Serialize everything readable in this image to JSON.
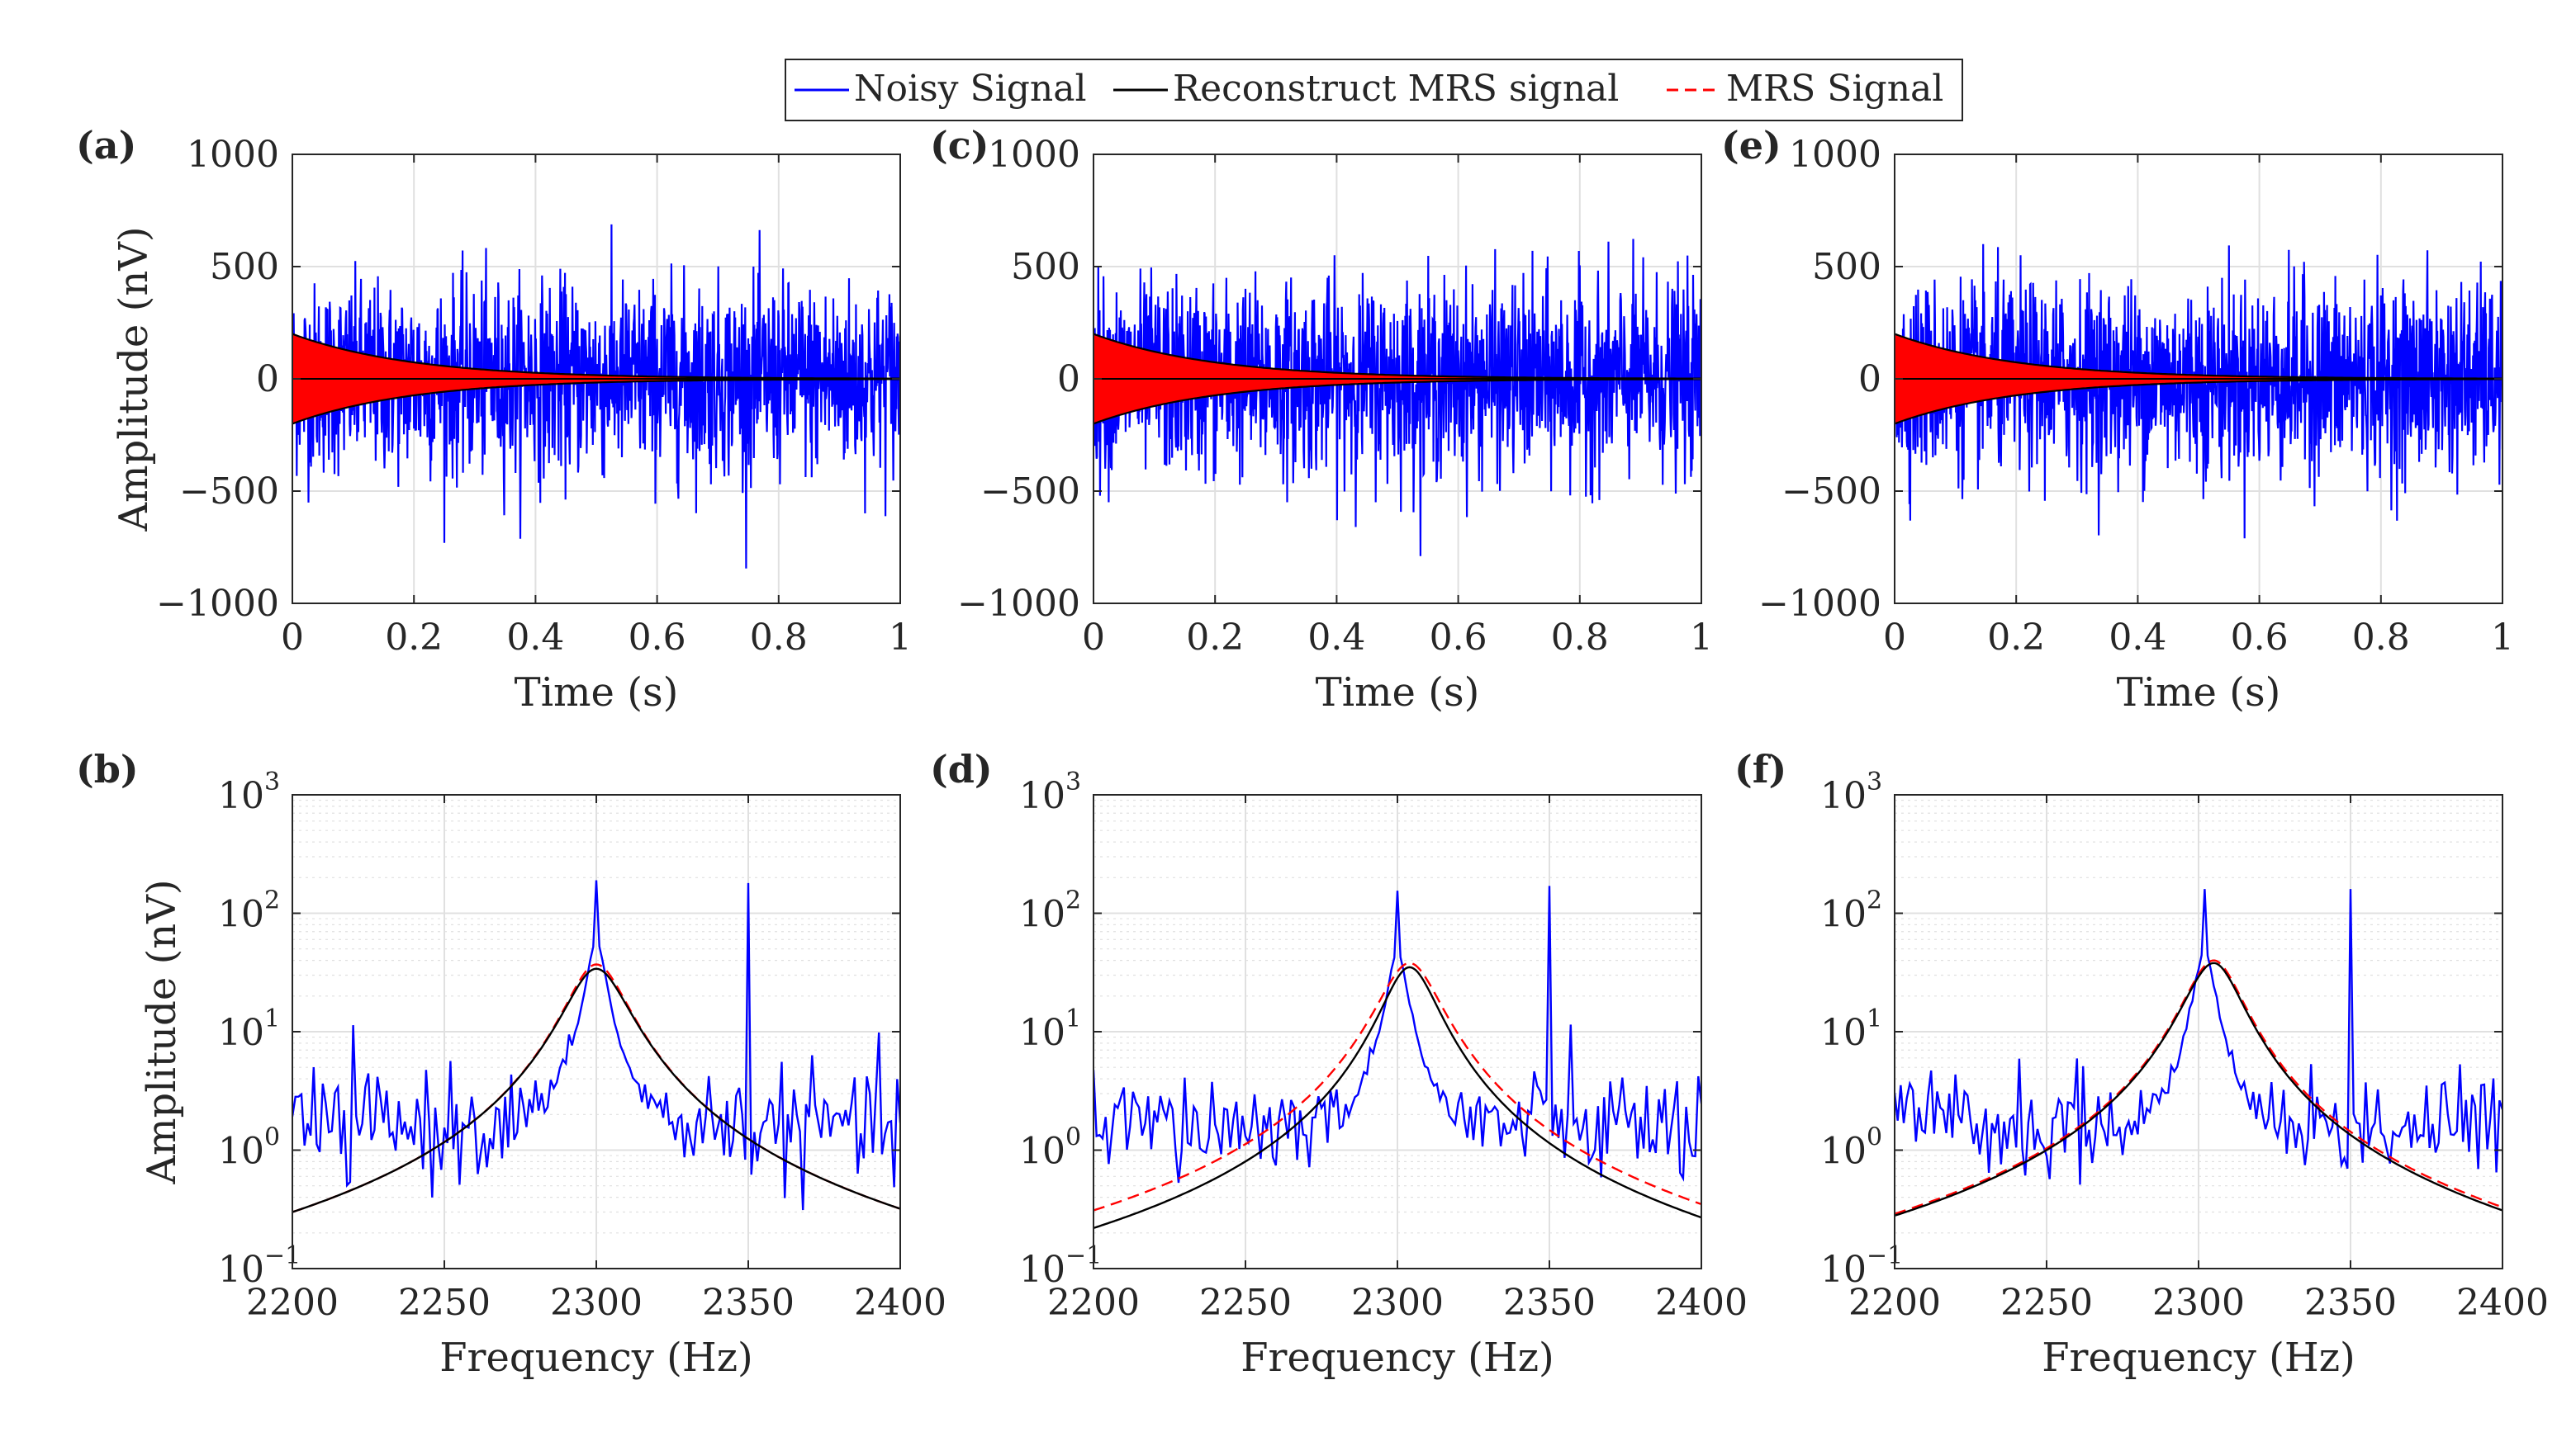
{
  "legend": {
    "entries": [
      {
        "label": "Noisy Signal",
        "color": "#0000ff",
        "dash": "solid"
      },
      {
        "label": "Reconstruct MRS signal",
        "color": "#000000",
        "dash": "solid"
      },
      {
        "label": "MRS Signal",
        "color": "#ff0000",
        "dash": "dashed"
      }
    ],
    "placement": "top-center"
  },
  "colors": {
    "noisy": "#0000ff",
    "reconstruct": "#000000",
    "mrs": "#ff0000",
    "grid": "#e0e0e0",
    "axis": "#262626"
  },
  "chart_data": [
    {
      "panel": "(a)",
      "type": "line",
      "xlabel": "Time (s)",
      "ylabel": "Amplitude (nV)",
      "xlim": [
        0,
        1
      ],
      "ylim": [
        -1000,
        1000
      ],
      "xticks": [
        0,
        0.2,
        0.4,
        0.6,
        0.8,
        1
      ],
      "xtick_labels": [
        "0",
        "0.2",
        "0.4",
        "0.6",
        "0.8",
        "1"
      ],
      "yticks": [
        -1000,
        -500,
        0,
        500,
        1000
      ],
      "ytick_labels": [
        "−1000",
        "−500",
        "0",
        "500",
        "1000"
      ],
      "grid": true,
      "series": [
        {
          "name": "Noisy Signal",
          "kind": "noise_band",
          "std_nV": 210,
          "peak_nV": 860,
          "x_range": [
            0,
            1
          ]
        },
        {
          "name": "MRS Signal",
          "kind": "decay_envelope",
          "amplitude_nV": 200,
          "decay_time_s": 0.2,
          "x_range": [
            0,
            1
          ]
        },
        {
          "name": "Reconstruct MRS signal",
          "kind": "decay_envelope",
          "amplitude_nV": 200,
          "decay_time_s": 0.2,
          "x_range": [
            0,
            1
          ]
        }
      ]
    },
    {
      "panel": "(c)",
      "type": "line",
      "xlabel": "Time (s)",
      "ylabel": "",
      "xlim": [
        0,
        1
      ],
      "ylim": [
        -1000,
        1000
      ],
      "xticks": [
        0,
        0.2,
        0.4,
        0.6,
        0.8,
        1
      ],
      "xtick_labels": [
        "0",
        "0.2",
        "0.4",
        "0.6",
        "0.8",
        "1"
      ],
      "yticks": [
        -1000,
        -500,
        0,
        500,
        1000
      ],
      "ytick_labels": [
        "−1000",
        "−500",
        "0",
        "500",
        "1000"
      ],
      "grid": true,
      "series": [
        {
          "name": "Noisy Signal",
          "kind": "noise_band",
          "std_nV": 210,
          "peak_nV": 850,
          "x_range": [
            0,
            1
          ]
        },
        {
          "name": "MRS Signal",
          "kind": "decay_envelope",
          "amplitude_nV": 200,
          "decay_time_s": 0.2,
          "x_range": [
            0,
            1
          ]
        },
        {
          "name": "Reconstruct MRS signal",
          "kind": "decay_envelope",
          "amplitude_nV": 200,
          "decay_time_s": 0.2,
          "x_range": [
            0,
            1
          ]
        }
      ]
    },
    {
      "panel": "(e)",
      "type": "line",
      "xlabel": "Time (s)",
      "ylabel": "",
      "xlim": [
        0,
        1
      ],
      "ylim": [
        -1000,
        1000
      ],
      "xticks": [
        0,
        0.2,
        0.4,
        0.6,
        0.8,
        1
      ],
      "xtick_labels": [
        "0",
        "0.2",
        "0.4",
        "0.6",
        "0.8",
        "1"
      ],
      "yticks": [
        -1000,
        -500,
        0,
        500,
        1000
      ],
      "ytick_labels": [
        "−1000",
        "−500",
        "0",
        "500",
        "1000"
      ],
      "grid": true,
      "series": [
        {
          "name": "Noisy Signal",
          "kind": "noise_band",
          "std_nV": 210,
          "peak_nV": 850,
          "x_range": [
            0,
            1
          ]
        },
        {
          "name": "MRS Signal",
          "kind": "decay_envelope",
          "amplitude_nV": 200,
          "decay_time_s": 0.2,
          "x_range": [
            0,
            1
          ]
        },
        {
          "name": "Reconstruct MRS signal",
          "kind": "decay_envelope",
          "amplitude_nV": 200,
          "decay_time_s": 0.2,
          "x_range": [
            0,
            1
          ]
        }
      ]
    },
    {
      "panel": "(b)",
      "type": "line",
      "yscale": "log",
      "xlabel": "Frequency (Hz)",
      "ylabel": "Amplitude (nV)",
      "xlim": [
        2200,
        2400
      ],
      "ylim": [
        0.1,
        1000
      ],
      "xticks": [
        2200,
        2250,
        2300,
        2350,
        2400
      ],
      "xtick_labels": [
        "2200",
        "2250",
        "2300",
        "2350",
        "2400"
      ],
      "ytick_exponents": [
        -1,
        0,
        1,
        2,
        3
      ],
      "grid": true,
      "series": [
        {
          "name": "Noisy Signal",
          "kind": "spectrum",
          "baseline_nV": 1.6,
          "peaks": [
            {
              "x": 2300,
              "y": 190
            },
            {
              "x": 2350,
              "y": 180
            }
          ]
        },
        {
          "name": "MRS Signal",
          "kind": "lorentzian",
          "center_Hz": 2300,
          "peak_nV": 37,
          "y_at_2200": 0.3,
          "y_at_2400": 0.32
        },
        {
          "name": "Reconstruct MRS signal",
          "kind": "lorentzian",
          "center_Hz": 2300,
          "peak_nV": 34,
          "y_at_2200": 0.3,
          "y_at_2400": 0.32
        }
      ]
    },
    {
      "panel": "(d)",
      "type": "line",
      "yscale": "log",
      "xlabel": "Frequency (Hz)",
      "ylabel": "",
      "xlim": [
        2200,
        2400
      ],
      "ylim": [
        0.1,
        1000
      ],
      "xticks": [
        2200,
        2250,
        2300,
        2350,
        2400
      ],
      "xtick_labels": [
        "2200",
        "2250",
        "2300",
        "2350",
        "2400"
      ],
      "ytick_exponents": [
        -1,
        0,
        1,
        2,
        3
      ],
      "grid": true,
      "series": [
        {
          "name": "Noisy Signal",
          "kind": "spectrum",
          "baseline_nV": 1.6,
          "peaks": [
            {
              "x": 2300,
              "y": 155
            },
            {
              "x": 2350,
              "y": 170
            }
          ]
        },
        {
          "name": "MRS Signal",
          "kind": "lorentzian",
          "center_Hz": 2304,
          "peak_nV": 38,
          "y_at_2200": 0.31,
          "y_at_2400": 0.35
        },
        {
          "name": "Reconstruct MRS signal",
          "kind": "lorentzian",
          "center_Hz": 2304,
          "peak_nV": 35,
          "y_at_2200": 0.22,
          "y_at_2400": 0.27
        }
      ]
    },
    {
      "panel": "(f)",
      "type": "line",
      "yscale": "log",
      "xlabel": "Frequency (Hz)",
      "ylabel": "",
      "xlim": [
        2200,
        2400
      ],
      "ylim": [
        0.1,
        1000
      ],
      "xticks": [
        2200,
        2250,
        2300,
        2350,
        2400
      ],
      "xtick_labels": [
        "2200",
        "2250",
        "2300",
        "2350",
        "2400"
      ],
      "ytick_exponents": [
        -1,
        0,
        1,
        2,
        3
      ],
      "grid": true,
      "series": [
        {
          "name": "Noisy Signal",
          "kind": "spectrum",
          "baseline_nV": 1.6,
          "peaks": [
            {
              "x": 2302,
              "y": 160
            },
            {
              "x": 2350,
              "y": 160
            }
          ]
        },
        {
          "name": "MRS Signal",
          "kind": "lorentzian",
          "center_Hz": 2305,
          "peak_nV": 40,
          "y_at_2200": 0.29,
          "y_at_2400": 0.33
        },
        {
          "name": "Reconstruct MRS signal",
          "kind": "lorentzian",
          "center_Hz": 2305,
          "peak_nV": 38,
          "y_at_2200": 0.28,
          "y_at_2400": 0.31
        }
      ]
    }
  ]
}
